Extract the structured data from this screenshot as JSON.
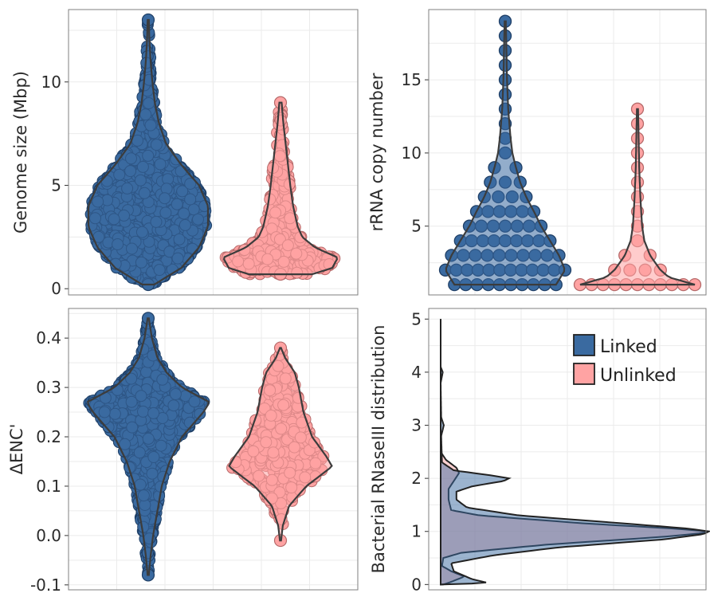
{
  "colors": {
    "linked": "#3a6aa0",
    "linked_dark": "#1f3f66",
    "unlinked": "#ffa3a3",
    "unlinked_dark": "#b66a6a",
    "violin_line": "#3c3c3c",
    "grid": "#ebebeb",
    "panel_border": "#7f7f7f"
  },
  "chart_data": [
    {
      "id": "genome",
      "type": "violin",
      "title": "",
      "xlabel": "",
      "ylabel": "Genome size (Mbp)",
      "categories": [
        "Linked",
        "Unlinked"
      ],
      "ylim": [
        -0.3,
        13.5
      ],
      "yticks": [
        0,
        5,
        10
      ],
      "grid": true,
      "series": [
        {
          "name": "Linked",
          "min": 0.2,
          "max": 13.0,
          "median": 3.8,
          "density": [
            [
              0.2,
              0.1
            ],
            [
              1,
              0.55
            ],
            [
              2,
              0.85
            ],
            [
              3,
              1.0
            ],
            [
              4,
              1.0
            ],
            [
              5,
              0.85
            ],
            [
              6,
              0.55
            ],
            [
              7,
              0.3
            ],
            [
              8,
              0.18
            ],
            [
              9,
              0.11
            ],
            [
              10,
              0.07
            ],
            [
              11,
              0.04
            ],
            [
              12,
              0.02
            ],
            [
              13,
              0.01
            ]
          ]
        },
        {
          "name": "Unlinked",
          "min": 0.7,
          "max": 9.0,
          "median": 2.0,
          "density": [
            [
              0.7,
              0.55
            ],
            [
              1,
              0.9
            ],
            [
              1.5,
              1.0
            ],
            [
              2,
              0.6
            ],
            [
              2.5,
              0.38
            ],
            [
              3,
              0.3
            ],
            [
              4,
              0.22
            ],
            [
              5,
              0.17
            ],
            [
              6,
              0.13
            ],
            [
              7,
              0.09
            ],
            [
              8,
              0.05
            ],
            [
              9,
              0.02
            ]
          ]
        }
      ]
    },
    {
      "id": "rrna",
      "type": "violin",
      "title": "",
      "xlabel": "",
      "ylabel": "rRNA copy number",
      "categories": [
        "Linked",
        "Unlinked"
      ],
      "ylim": [
        0.3,
        19.8
      ],
      "yticks": [
        5,
        10,
        15
      ],
      "grid": true,
      "series": [
        {
          "name": "Linked",
          "min": 1,
          "max": 19,
          "median": 4,
          "density": [
            [
              1,
              0.85
            ],
            [
              2,
              1.0
            ],
            [
              3,
              0.9
            ],
            [
              4,
              0.75
            ],
            [
              5,
              0.6
            ],
            [
              6,
              0.48
            ],
            [
              7,
              0.35
            ],
            [
              8,
              0.25
            ],
            [
              9,
              0.18
            ],
            [
              10,
              0.12
            ],
            [
              11,
              0.09
            ],
            [
              12,
              0.07
            ],
            [
              13,
              0.05
            ],
            [
              14,
              0.04
            ],
            [
              15,
              0.03
            ],
            [
              17,
              0.02
            ],
            [
              19,
              0.01
            ]
          ]
        },
        {
          "name": "Unlinked",
          "min": 1,
          "max": 13,
          "median": 2,
          "density": [
            [
              1,
              1.0
            ],
            [
              1.5,
              0.55
            ],
            [
              2,
              0.4
            ],
            [
              3,
              0.22
            ],
            [
              4,
              0.12
            ],
            [
              5,
              0.08
            ],
            [
              7,
              0.05
            ],
            [
              9,
              0.03
            ],
            [
              11,
              0.02
            ],
            [
              13,
              0.01
            ]
          ]
        }
      ]
    },
    {
      "id": "enc",
      "type": "violin",
      "title": "",
      "xlabel": "",
      "ylabel": "ΔENC'",
      "categories": [
        "Linked",
        "Unlinked"
      ],
      "ylim": [
        -0.11,
        0.46
      ],
      "yticks": [
        -0.1,
        0.0,
        0.1,
        0.2,
        0.3,
        0.4
      ],
      "grid": true,
      "series": [
        {
          "name": "Linked",
          "min": -0.08,
          "max": 0.44,
          "median": 0.24,
          "density": [
            [
              -0.08,
              0.01
            ],
            [
              -0.04,
              0.04
            ],
            [
              0.0,
              0.08
            ],
            [
              0.05,
              0.15
            ],
            [
              0.1,
              0.22
            ],
            [
              0.15,
              0.35
            ],
            [
              0.2,
              0.55
            ],
            [
              0.25,
              0.9
            ],
            [
              0.27,
              1.0
            ],
            [
              0.3,
              0.55
            ],
            [
              0.33,
              0.3
            ],
            [
              0.36,
              0.15
            ],
            [
              0.4,
              0.06
            ],
            [
              0.44,
              0.01
            ]
          ]
        },
        {
          "name": "Unlinked",
          "min": -0.01,
          "max": 0.38,
          "median": 0.18,
          "density": [
            [
              -0.01,
              0.01
            ],
            [
              0.02,
              0.04
            ],
            [
              0.06,
              0.15
            ],
            [
              0.1,
              0.45
            ],
            [
              0.14,
              0.9
            ],
            [
              0.16,
              0.8
            ],
            [
              0.2,
              0.55
            ],
            [
              0.25,
              0.4
            ],
            [
              0.3,
              0.32
            ],
            [
              0.33,
              0.25
            ],
            [
              0.36,
              0.08
            ],
            [
              0.38,
              0.01
            ]
          ]
        }
      ]
    },
    {
      "id": "rnase",
      "type": "area",
      "title": "",
      "xlabel": "",
      "ylabel": "Bacterial RNaseIII distribution",
      "ylim": [
        -0.1,
        5.2
      ],
      "yticks": [
        0,
        1,
        2,
        3,
        4,
        5
      ],
      "grid": true,
      "legend": {
        "position": "top-right",
        "entries": [
          "Linked",
          "Unlinked"
        ]
      },
      "series": [
        {
          "name": "Linked",
          "points": [
            [
              0.0,
              0.01
            ],
            [
              0.03,
              0.18
            ],
            [
              0.1,
              0.12
            ],
            [
              0.25,
              0.05
            ],
            [
              0.4,
              0.04
            ],
            [
              0.55,
              0.2
            ],
            [
              0.7,
              0.45
            ],
            [
              0.85,
              0.85
            ],
            [
              0.95,
              1.0
            ],
            [
              1.0,
              1.02
            ],
            [
              1.05,
              0.95
            ],
            [
              1.15,
              0.7
            ],
            [
              1.3,
              0.3
            ],
            [
              1.45,
              0.1
            ],
            [
              1.6,
              0.06
            ],
            [
              1.75,
              0.06
            ],
            [
              1.85,
              0.12
            ],
            [
              1.95,
              0.24
            ],
            [
              2.0,
              0.26
            ],
            [
              2.05,
              0.2
            ],
            [
              2.15,
              0.05
            ],
            [
              2.3,
              0.005
            ],
            [
              2.8,
              0.002
            ],
            [
              3.0,
              0.012
            ],
            [
              3.15,
              0.002
            ],
            [
              3.8,
              0.0
            ],
            [
              4.0,
              0.008
            ],
            [
              4.1,
              0.0
            ],
            [
              5.0,
              0.0
            ]
          ]
        },
        {
          "name": "Unlinked",
          "points": [
            [
              0.0,
              0.01
            ],
            [
              0.05,
              0.04
            ],
            [
              0.15,
              0.09
            ],
            [
              0.25,
              0.04
            ],
            [
              0.35,
              0.005
            ],
            [
              0.5,
              0.01
            ],
            [
              0.6,
              0.08
            ],
            [
              0.75,
              0.4
            ],
            [
              0.9,
              0.85
            ],
            [
              0.97,
              1.0
            ],
            [
              1.0,
              1.02
            ],
            [
              1.05,
              0.9
            ],
            [
              1.15,
              0.55
            ],
            [
              1.3,
              0.15
            ],
            [
              1.4,
              0.04
            ],
            [
              1.6,
              0.03
            ],
            [
              1.8,
              0.03
            ],
            [
              1.95,
              0.05
            ],
            [
              2.1,
              0.07
            ],
            [
              2.2,
              0.06
            ],
            [
              2.35,
              0.02
            ],
            [
              2.5,
              0.0
            ],
            [
              5.0,
              0.0
            ]
          ]
        }
      ]
    }
  ]
}
